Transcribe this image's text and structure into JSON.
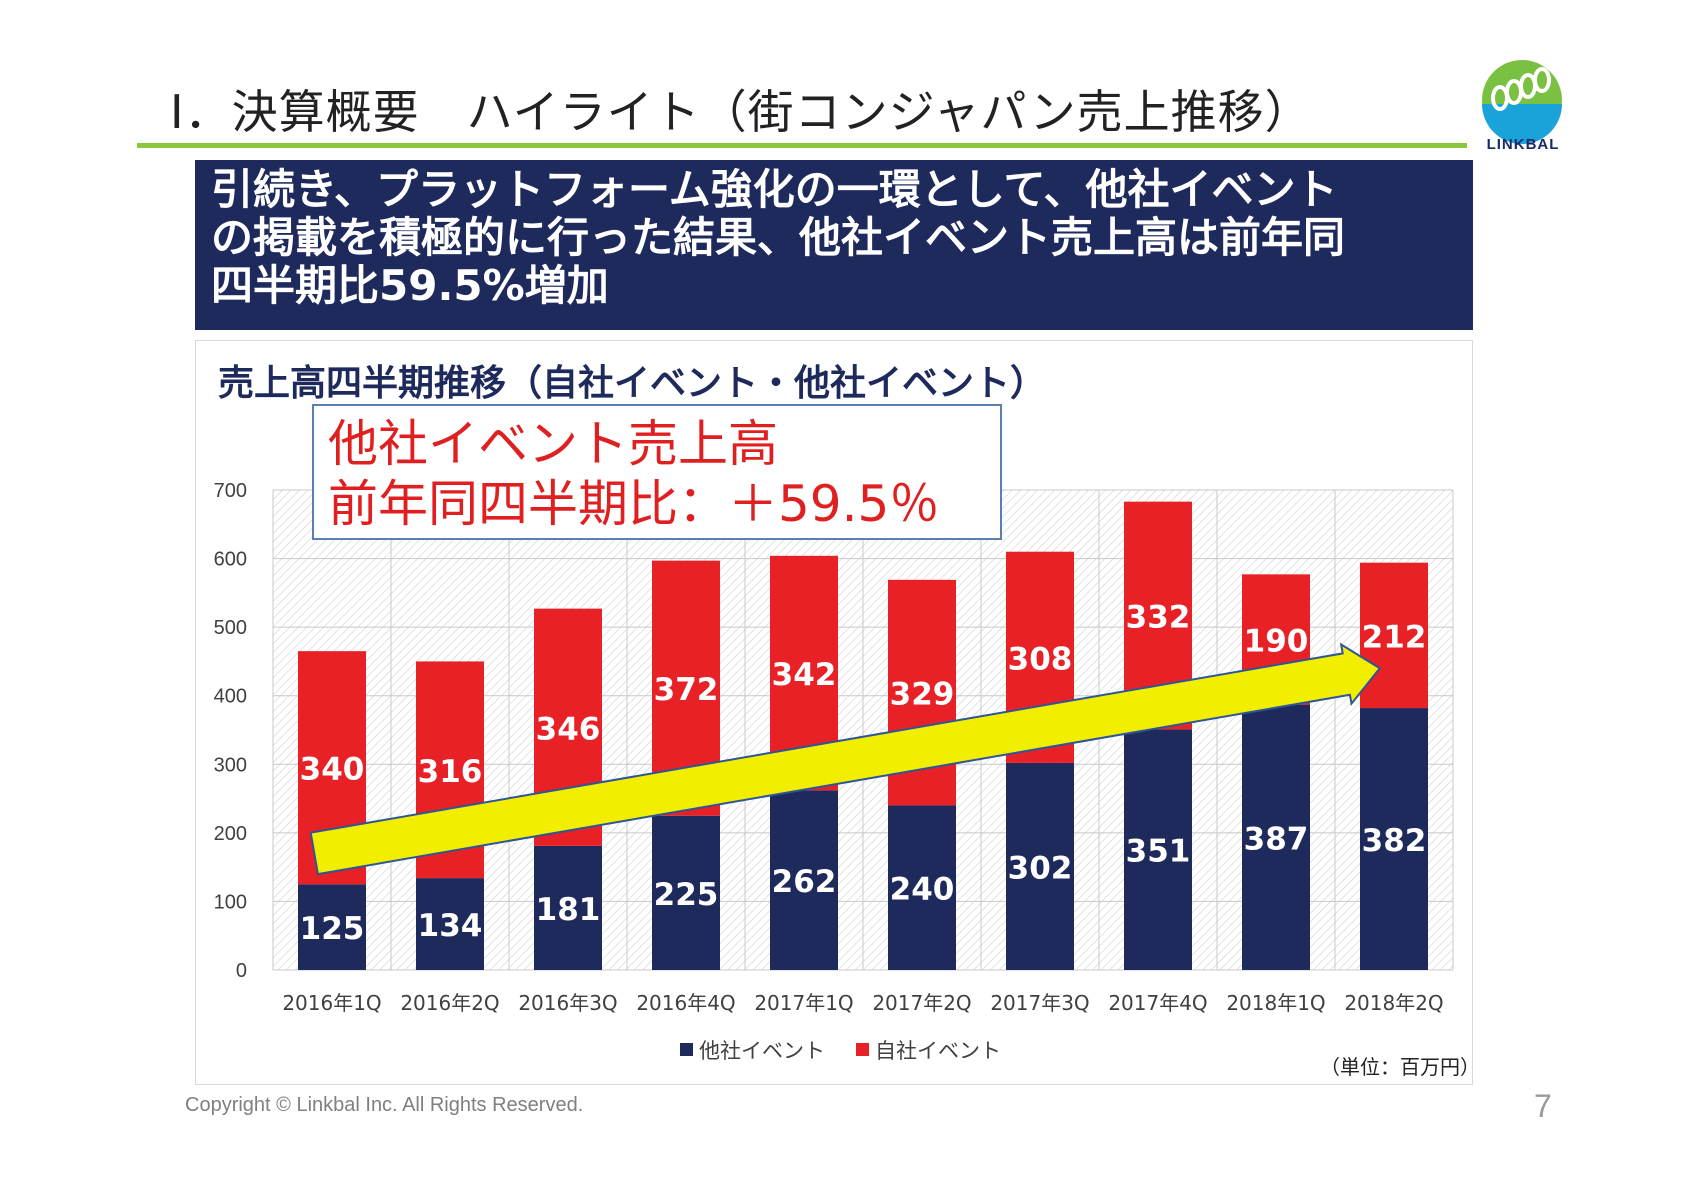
{
  "slide": {
    "title": "Ⅰ．決算概要　ハイライト（街コンジャパン売上推移）",
    "logo_text": "LINKBAL",
    "headline_lines": [
      "引続き、プラットフォーム強化の一環として、他社イベント",
      "の掲載を積極的に行った結果、他社イベント売上高は前年同",
      "四半期比59.5%増加"
    ],
    "callout_lines": [
      "他社イベント売上高",
      "前年同四半期比：＋59.5％"
    ],
    "unit_note": "（単位：百万円）",
    "footer": "Copyright © Linkbal Inc. All Rights Reserved.",
    "page_number": "7"
  },
  "chart_data": {
    "type": "bar",
    "stacked": true,
    "title": "売上高四半期推移（自社イベント・他社イベント）",
    "categories": [
      "2016年1Q",
      "2016年2Q",
      "2016年3Q",
      "2016年4Q",
      "2017年1Q",
      "2017年2Q",
      "2017年3Q",
      "2017年4Q",
      "2018年1Q",
      "2018年2Q"
    ],
    "series": [
      {
        "name": "他社イベント",
        "color": "#1f2a5c",
        "values": [
          125,
          134,
          181,
          225,
          262,
          240,
          302,
          351,
          387,
          382
        ]
      },
      {
        "name": "自社イベント",
        "color": "#e82127",
        "values": [
          340,
          316,
          346,
          372,
          342,
          329,
          308,
          332,
          190,
          212
        ]
      }
    ],
    "ylim": [
      0,
      700
    ],
    "yticks": [
      0,
      100,
      200,
      300,
      400,
      500,
      600,
      700
    ],
    "grid": true,
    "legend": "bottom",
    "trend_arrow_color": "#f2ee00",
    "xlabel": "",
    "ylabel": ""
  }
}
